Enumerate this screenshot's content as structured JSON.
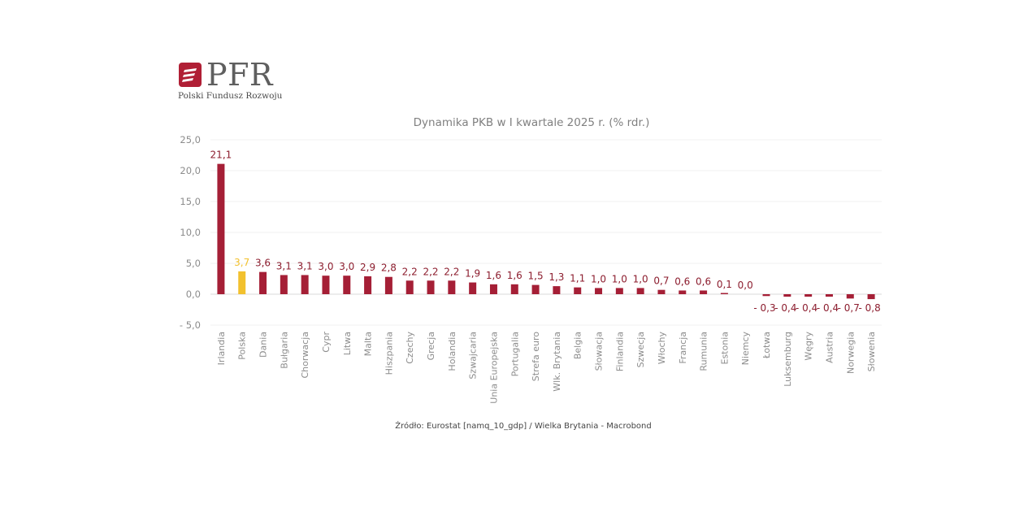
{
  "logo": {
    "name": "PFR",
    "subtitle": "Polski Fundusz Rozwoju",
    "color": "#b01f35"
  },
  "source_note": "Źródło: Eurostat [namq_10_gdp] / Wielka Brytania - Macrobond",
  "chart_data": {
    "type": "bar",
    "title": "Dynamika PKB w I kwartale 2025 r. (% rdr.)",
    "xlabel": "",
    "ylabel": "",
    "ylim": [
      -5,
      25
    ],
    "yticks": [
      -5,
      0,
      5,
      10,
      15,
      20,
      25
    ],
    "ytick_labels": [
      "- 5,0",
      "0,0",
      "5,0",
      "10,0",
      "15,0",
      "20,0",
      "25,0"
    ],
    "grid": true,
    "legend": "none",
    "bar_color": "#a51f36",
    "highlight_color": "#f2c12e",
    "highlight_category": "Polska",
    "categories": [
      "Irlandia",
      "Polska",
      "Dania",
      "Bułgaria",
      "Chorwacja",
      "Cypr",
      "Litwa",
      "Malta",
      "Hiszpania",
      "Czechy",
      "Grecja",
      "Holandia",
      "Szwajcaria",
      "Unia Europejska",
      "Portugalia",
      "Strefa euro",
      "Wlk. Brytania",
      "Belgia",
      "Słowacja",
      "Finlandia",
      "Szwecja",
      "Włochy",
      "Francja",
      "Rumunia",
      "Estonia",
      "Niemcy",
      "Łotwa",
      "Luksemburg",
      "Węgry",
      "Austria",
      "Norwegia",
      "Słowenia"
    ],
    "values": [
      21.1,
      3.7,
      3.6,
      3.1,
      3.1,
      3.0,
      3.0,
      2.9,
      2.8,
      2.2,
      2.2,
      2.2,
      1.9,
      1.6,
      1.6,
      1.5,
      1.3,
      1.1,
      1.0,
      1.0,
      1.0,
      0.7,
      0.6,
      0.6,
      0.1,
      0.0,
      -0.3,
      -0.4,
      -0.4,
      -0.4,
      -0.7,
      -0.8
    ],
    "data_labels": [
      "21,1",
      "3,7",
      "3,6",
      "3,1",
      "3,1",
      "3,0",
      "3,0",
      "2,9",
      "2,8",
      "2,2",
      "2,2",
      "2,2",
      "1,9",
      "1,6",
      "1,6",
      "1,5",
      "1,3",
      "1,1",
      "1,0",
      "1,0",
      "1,0",
      "0,7",
      "0,6",
      "0,6",
      "0,1",
      "0,0",
      "- 0,3",
      "- 0,4",
      "- 0,4",
      "- 0,4",
      "- 0,7",
      "- 0,8"
    ]
  }
}
